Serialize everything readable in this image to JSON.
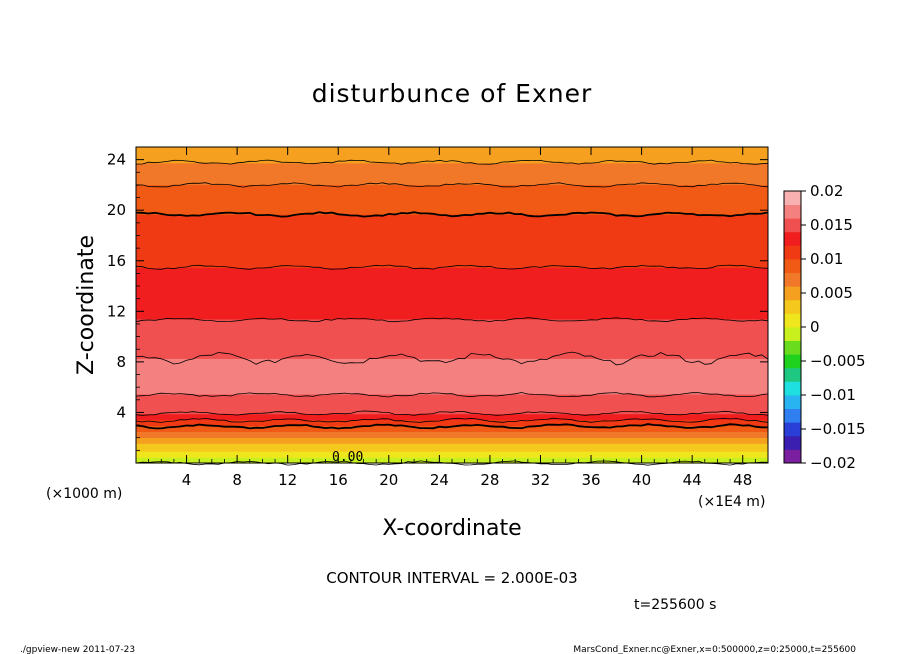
{
  "chart_data": {
    "type": "heatmap",
    "title": "disturbunce of Exner",
    "xlabel": "X-coordinate",
    "ylabel": "Z-coordinate",
    "x_unit_left": "(×1000 m)",
    "x_unit_right": "(×1E4 m)",
    "x_ticks": [
      4,
      8,
      12,
      16,
      20,
      24,
      28,
      32,
      36,
      40,
      44,
      48
    ],
    "y_ticks": [
      4,
      8,
      12,
      16,
      20,
      24
    ],
    "xlim": [
      0,
      50
    ],
    "ylim": [
      0,
      25
    ],
    "contour_interval_text": "CONTOUR INTERVAL = 2.000E-03",
    "time_text": "t=255600 s",
    "contour_zero_label": "0.00",
    "colorbar": {
      "range": [
        -0.02,
        0.02
      ],
      "tick_labels": [
        "0.02",
        "0.015",
        "0.01",
        "0.005",
        "0",
        "−0.005",
        "−0.01",
        "−0.015",
        "−0.02"
      ],
      "tick_values": [
        0.02,
        0.015,
        0.01,
        0.005,
        0,
        -0.005,
        -0.01,
        -0.015,
        -0.02
      ],
      "colors": [
        "#7a1fa0",
        "#3a1fb0",
        "#2a3fd8",
        "#2f7ff0",
        "#28b4f0",
        "#1ee0e0",
        "#1ec880",
        "#1ed21e",
        "#6adc1e",
        "#c8f01e",
        "#f0e61e",
        "#f5c81e",
        "#f5a01e",
        "#f07828",
        "#f05a14",
        "#f03a14",
        "#f01e1e",
        "#f05050",
        "#f58080",
        "#f8b0b0"
      ]
    },
    "profile": {
      "z": [
        0,
        0.5,
        1,
        1.5,
        2,
        2.5,
        3,
        3.5,
        4,
        5,
        6,
        7,
        8,
        9,
        10,
        11,
        12,
        13,
        14,
        15,
        16,
        17,
        18,
        19,
        20,
        21,
        22,
        23,
        24,
        25
      ],
      "value": [
        -0.002,
        0.0,
        0.002,
        0.004,
        0.006,
        0.008,
        0.0105,
        0.0125,
        0.0142,
        0.0158,
        0.0163,
        0.0165,
        0.0162,
        0.0155,
        0.0148,
        0.0142,
        0.0136,
        0.0131,
        0.0127,
        0.0122,
        0.0118,
        0.0114,
        0.011,
        0.0104,
        0.0098,
        0.009,
        0.008,
        0.0068,
        0.0058,
        0.005
      ]
    }
  },
  "footer": {
    "left": "./gpview-new   2011-07-23",
    "right": "MarsCond_Exner.nc@Exner,x=0:500000,z=0:25000,t=255600"
  }
}
